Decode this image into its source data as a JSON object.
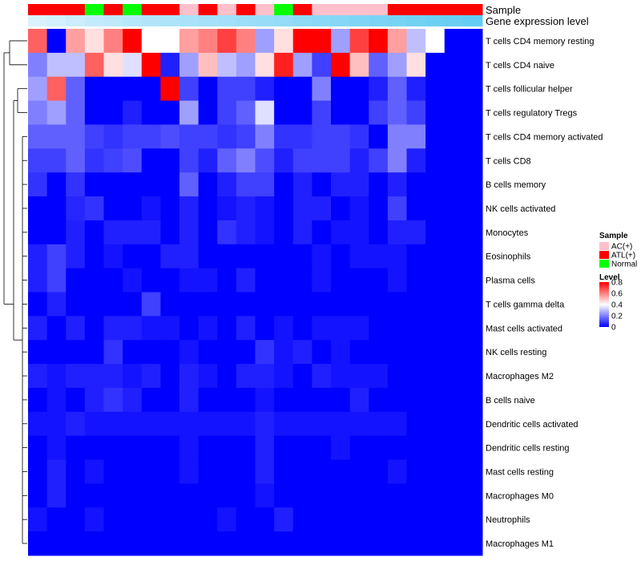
{
  "chart_data": {
    "type": "heatmap",
    "title": "",
    "column_count": 24,
    "top_tracks": [
      {
        "label": "Sample",
        "type": "categorical"
      },
      {
        "label": "Gene expression level",
        "type": "continuous"
      }
    ],
    "sample_annotation": [
      "ATL(+)",
      "ATL(+)",
      "ATL(+)",
      "Normal",
      "ATL(+)",
      "Normal",
      "ATL(+)",
      "ATL(+)",
      "AC(+)",
      "ATL(+)",
      "AC(+)",
      "ATL(+)",
      "AC(+)",
      "Normal",
      "ATL(+)",
      "AC(+)",
      "AC(+)",
      "AC(+)",
      "AC(+)",
      "ATL(+)",
      "ATL(+)",
      "ATL(+)",
      "ATL(+)",
      "ATL(+)"
    ],
    "expression_annotation": [
      0.05,
      0.1,
      0.15,
      0.2,
      0.25,
      0.3,
      0.33,
      0.36,
      0.4,
      0.43,
      0.46,
      0.5,
      0.53,
      0.56,
      0.6,
      0.63,
      0.66,
      0.7,
      0.73,
      0.76,
      0.8,
      0.83,
      0.86,
      0.9
    ],
    "rows": [
      {
        "label": "T cells CD4 memory resting",
        "values": [
          0.65,
          0.0,
          0.55,
          0.45,
          0.6,
          0.85,
          0.4,
          0.4,
          0.55,
          0.6,
          0.7,
          0.6,
          0.25,
          0.45,
          0.85,
          0.85,
          0.25,
          0.7,
          0.85,
          0.55,
          0.3,
          0.4,
          0.0,
          0.0
        ]
      },
      {
        "label": "T cells CD4 naive",
        "values": [
          0.2,
          0.3,
          0.3,
          0.65,
          0.45,
          0.35,
          0.85,
          0.05,
          0.25,
          0.5,
          0.3,
          0.25,
          0.45,
          0.75,
          0.25,
          0.1,
          0.85,
          0.5,
          0.15,
          0.25,
          0.45,
          0.0,
          0.0,
          0.0
        ]
      },
      {
        "label": "T cells follicular helper",
        "values": [
          0.25,
          0.65,
          0.15,
          0.0,
          0.0,
          0.0,
          0.0,
          0.8,
          0.1,
          0.0,
          0.1,
          0.1,
          0.05,
          0.0,
          0.0,
          0.2,
          0.0,
          0.0,
          0.05,
          0.15,
          0.05,
          0.0,
          0.0,
          0.0
        ]
      },
      {
        "label": "T cells regulatory  Tregs",
        "values": [
          0.2,
          0.25,
          0.15,
          0.0,
          0.0,
          0.05,
          0.0,
          0.0,
          0.25,
          0.0,
          0.1,
          0.15,
          0.35,
          0.0,
          0.0,
          0.1,
          0.0,
          0.0,
          0.1,
          0.15,
          0.1,
          0.0,
          0.0,
          0.0
        ]
      },
      {
        "label": "T cells CD4 memory activated",
        "values": [
          0.15,
          0.15,
          0.15,
          0.1,
          0.08,
          0.1,
          0.1,
          0.12,
          0.1,
          0.1,
          0.08,
          0.1,
          0.2,
          0.08,
          0.08,
          0.1,
          0.1,
          0.08,
          0.0,
          0.2,
          0.2,
          0.0,
          0.0,
          0.0
        ]
      },
      {
        "label": "T cells CD8",
        "values": [
          0.1,
          0.1,
          0.15,
          0.08,
          0.1,
          0.12,
          0.0,
          0.0,
          0.1,
          0.05,
          0.15,
          0.2,
          0.12,
          0.05,
          0.1,
          0.1,
          0.1,
          0.05,
          0.1,
          0.2,
          0.05,
          0.0,
          0.0,
          0.0
        ]
      },
      {
        "label": "B cells memory",
        "values": [
          0.08,
          0.0,
          0.08,
          0.0,
          0.0,
          0.0,
          0.0,
          0.0,
          0.15,
          0.0,
          0.05,
          0.1,
          0.1,
          0.0,
          0.05,
          0.0,
          0.05,
          0.05,
          0.0,
          0.05,
          0.0,
          0.0,
          0.0,
          0.0
        ]
      },
      {
        "label": "NK cells activated",
        "values": [
          0.0,
          0.0,
          0.06,
          0.08,
          0.0,
          0.0,
          0.03,
          0.0,
          0.05,
          0.0,
          0.03,
          0.05,
          0.03,
          0.0,
          0.05,
          0.05,
          0.0,
          0.03,
          0.0,
          0.1,
          0.0,
          0.0,
          0.0,
          0.0
        ]
      },
      {
        "label": "Monocytes",
        "values": [
          0.0,
          0.0,
          0.05,
          0.0,
          0.05,
          0.05,
          0.05,
          0.0,
          0.05,
          0.0,
          0.08,
          0.05,
          0.03,
          0.0,
          0.05,
          0.0,
          0.03,
          0.03,
          0.0,
          0.05,
          0.05,
          0.0,
          0.0,
          0.0
        ]
      },
      {
        "label": "Eosinophils",
        "values": [
          0.05,
          0.1,
          0.05,
          0.0,
          0.03,
          0.0,
          0.0,
          0.05,
          0.05,
          0.0,
          0.0,
          0.0,
          0.0,
          0.0,
          0.0,
          0.03,
          0.0,
          0.03,
          0.03,
          0.03,
          0.0,
          0.0,
          0.0,
          0.0
        ]
      },
      {
        "label": "Plasma cells",
        "values": [
          0.05,
          0.1,
          0.0,
          0.0,
          0.0,
          0.03,
          0.0,
          0.0,
          0.03,
          0.03,
          0.0,
          0.05,
          0.0,
          0.0,
          0.0,
          0.03,
          0.0,
          0.0,
          0.0,
          0.03,
          0.0,
          0.0,
          0.0,
          0.0
        ]
      },
      {
        "label": "T cells gamma delta",
        "values": [
          0.0,
          0.05,
          0.0,
          0.0,
          0.0,
          0.0,
          0.1,
          0.0,
          0.0,
          0.0,
          0.0,
          0.0,
          0.0,
          0.0,
          0.0,
          0.0,
          0.0,
          0.0,
          0.0,
          0.0,
          0.0,
          0.0,
          0.0,
          0.0
        ]
      },
      {
        "label": "Mast cells activated",
        "values": [
          0.05,
          0.0,
          0.05,
          0.0,
          0.05,
          0.05,
          0.03,
          0.03,
          0.0,
          0.03,
          0.0,
          0.05,
          0.0,
          0.03,
          0.0,
          0.03,
          0.03,
          0.03,
          0.0,
          0.0,
          0.0,
          0.0,
          0.0,
          0.0
        ]
      },
      {
        "label": "NK cells resting",
        "values": [
          0.0,
          0.0,
          0.0,
          0.0,
          0.08,
          0.0,
          0.0,
          0.0,
          0.03,
          0.0,
          0.0,
          0.0,
          0.08,
          0.03,
          0.05,
          0.0,
          0.03,
          0.0,
          0.0,
          0.0,
          0.0,
          0.0,
          0.0,
          0.0
        ]
      },
      {
        "label": "Macrophages M2",
        "values": [
          0.05,
          0.03,
          0.05,
          0.05,
          0.05,
          0.03,
          0.05,
          0.0,
          0.05,
          0.03,
          0.0,
          0.05,
          0.05,
          0.03,
          0.0,
          0.05,
          0.03,
          0.03,
          0.03,
          0.0,
          0.0,
          0.0,
          0.0,
          0.0
        ]
      },
      {
        "label": "B cells naive",
        "values": [
          0.0,
          0.03,
          0.0,
          0.05,
          0.08,
          0.05,
          0.0,
          0.0,
          0.05,
          0.0,
          0.0,
          0.0,
          0.03,
          0.0,
          0.0,
          0.0,
          0.0,
          0.05,
          0.0,
          0.0,
          0.0,
          0.0,
          0.0,
          0.0
        ]
      },
      {
        "label": "Dendritic cells activated",
        "values": [
          0.03,
          0.03,
          0.05,
          0.03,
          0.03,
          0.03,
          0.03,
          0.03,
          0.03,
          0.03,
          0.03,
          0.03,
          0.05,
          0.03,
          0.03,
          0.03,
          0.03,
          0.03,
          0.03,
          0.03,
          0.0,
          0.0,
          0.0,
          0.0
        ]
      },
      {
        "label": "Dendritic cells resting",
        "values": [
          0.0,
          0.03,
          0.0,
          0.0,
          0.0,
          0.0,
          0.0,
          0.0,
          0.03,
          0.0,
          0.0,
          0.0,
          0.05,
          0.0,
          0.0,
          0.0,
          0.03,
          0.0,
          0.0,
          0.0,
          0.0,
          0.0,
          0.0,
          0.0
        ]
      },
      {
        "label": "Mast cells resting",
        "values": [
          0.0,
          0.05,
          0.0,
          0.03,
          0.0,
          0.0,
          0.0,
          0.0,
          0.03,
          0.0,
          0.0,
          0.0,
          0.05,
          0.0,
          0.0,
          0.0,
          0.0,
          0.0,
          0.0,
          0.03,
          0.0,
          0.0,
          0.0,
          0.0
        ]
      },
      {
        "label": "Macrophages M0",
        "values": [
          0.0,
          0.05,
          0.0,
          0.0,
          0.0,
          0.0,
          0.0,
          0.0,
          0.0,
          0.0,
          0.0,
          0.0,
          0.03,
          0.0,
          0.0,
          0.0,
          0.0,
          0.0,
          0.0,
          0.0,
          0.0,
          0.0,
          0.0,
          0.0
        ]
      },
      {
        "label": "Neutrophils",
        "values": [
          0.03,
          0.0,
          0.0,
          0.03,
          0.0,
          0.0,
          0.0,
          0.0,
          0.0,
          0.0,
          0.03,
          0.0,
          0.0,
          0.05,
          0.0,
          0.0,
          0.0,
          0.0,
          0.0,
          0.0,
          0.0,
          0.0,
          0.0,
          0.0
        ]
      },
      {
        "label": "Macrophages M1",
        "values": [
          0.0,
          0.0,
          0.0,
          0.0,
          0.0,
          0.0,
          0.0,
          0.0,
          0.0,
          0.0,
          0.0,
          0.0,
          0.0,
          0.0,
          0.0,
          0.0,
          0.0,
          0.0,
          0.0,
          0.0,
          0.0,
          0.0,
          0.0,
          0.0
        ]
      }
    ],
    "legend": {
      "sample": {
        "title": "Sample",
        "entries": [
          {
            "label": "AC(+)",
            "color": "#FFC0CB"
          },
          {
            "label": "ATL(+)",
            "color": "#FF0000"
          },
          {
            "label": "Normal",
            "color": "#00FF00"
          }
        ]
      },
      "level": {
        "title": "Level",
        "ticks": [
          "0.8",
          "0.6",
          "0.4",
          "0.2",
          "0"
        ],
        "range": [
          0,
          0.8
        ]
      }
    },
    "colors": {
      "low": "#0000FF",
      "mid": "#FFFFFF",
      "high": "#FF0000",
      "expression_low": "#E0F4FF",
      "expression_high": "#56C8F0"
    }
  }
}
